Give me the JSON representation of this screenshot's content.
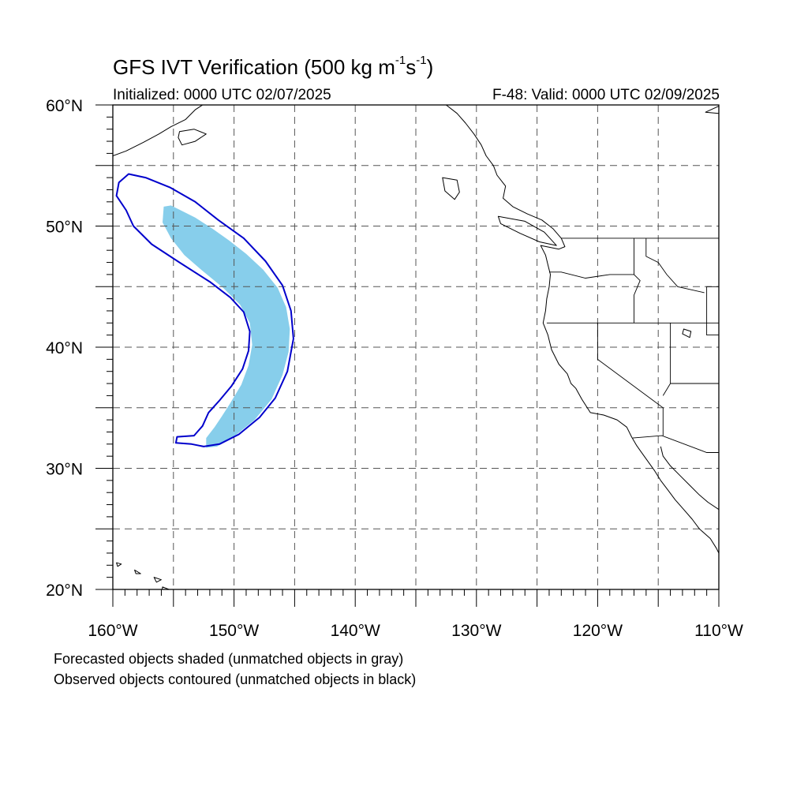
{
  "title": {
    "prefix": "GFS IVT Verification (500 kg m",
    "exp1": "-1",
    "mid": "s",
    "exp2": "-1",
    "suffix": ")"
  },
  "initialized": "Initialized: 0000 UTC 02/07/2025",
  "valid": "F-48: Valid: 0000 UTC 02/09/2025",
  "map": {
    "lon_range": [
      -160,
      -110
    ],
    "lat_range": [
      20,
      60
    ],
    "lat_labels": [
      {
        "lat": 60,
        "text": "60°N"
      },
      {
        "lat": 50,
        "text": "50°N"
      },
      {
        "lat": 40,
        "text": "40°N"
      },
      {
        "lat": 30,
        "text": "30°N"
      },
      {
        "lat": 20,
        "text": "20°N"
      }
    ],
    "lon_labels": [
      {
        "lon": -160,
        "text": "160°W"
      },
      {
        "lon": -150,
        "text": "150°W"
      },
      {
        "lon": -140,
        "text": "140°W"
      },
      {
        "lon": -130,
        "text": "130°W"
      },
      {
        "lon": -120,
        "text": "120°W"
      },
      {
        "lon": -110,
        "text": "110°W"
      }
    ],
    "gridlines": "dashed every 5°",
    "colors": {
      "forecast_fill": "#87ceeb",
      "observed_contour": "#0000cc",
      "coastline": "#000000",
      "grid": "#555555"
    },
    "forecast_object": [
      [
        -155.8,
        51.6
      ],
      [
        -155.2,
        51.7
      ],
      [
        -154.4,
        51.3
      ],
      [
        -153.2,
        50.7
      ],
      [
        -151.8,
        49.8
      ],
      [
        -150.4,
        48.8
      ],
      [
        -149.0,
        47.7
      ],
      [
        -147.6,
        46.4
      ],
      [
        -146.4,
        44.9
      ],
      [
        -145.7,
        43.3
      ],
      [
        -145.4,
        41.5
      ],
      [
        -145.5,
        39.6
      ],
      [
        -146.0,
        37.7
      ],
      [
        -146.9,
        35.7
      ],
      [
        -148.3,
        34.0
      ],
      [
        -149.9,
        32.7
      ],
      [
        -151.4,
        31.8
      ],
      [
        -152.3,
        31.7
      ],
      [
        -152.3,
        32.5
      ],
      [
        -151.6,
        33.4
      ],
      [
        -151.0,
        34.3
      ],
      [
        -150.3,
        35.4
      ],
      [
        -149.4,
        36.9
      ],
      [
        -148.8,
        38.5
      ],
      [
        -148.5,
        40.2
      ],
      [
        -148.7,
        42.0
      ],
      [
        -149.5,
        43.5
      ],
      [
        -150.9,
        44.9
      ],
      [
        -152.6,
        46.3
      ],
      [
        -154.1,
        47.6
      ],
      [
        -155.2,
        49.0
      ],
      [
        -155.9,
        50.3
      ]
    ],
    "observed_object": [
      [
        -159.5,
        53.6
      ],
      [
        -158.7,
        54.3
      ],
      [
        -157.3,
        54.0
      ],
      [
        -155.3,
        53.2
      ],
      [
        -153.2,
        52.0
      ],
      [
        -151.3,
        50.5
      ],
      [
        -149.2,
        49.0
      ],
      [
        -147.4,
        47.1
      ],
      [
        -146.0,
        45.1
      ],
      [
        -145.3,
        43.0
      ],
      [
        -145.1,
        40.7
      ],
      [
        -145.6,
        38.0
      ],
      [
        -146.6,
        35.8
      ],
      [
        -147.9,
        34.2
      ],
      [
        -149.6,
        32.8
      ],
      [
        -151.2,
        32.0
      ],
      [
        -152.5,
        31.8
      ],
      [
        -153.5,
        32.0
      ],
      [
        -154.8,
        32.1
      ],
      [
        -154.7,
        32.6
      ],
      [
        -153.3,
        32.7
      ],
      [
        -152.6,
        33.5
      ],
      [
        -152.1,
        34.6
      ],
      [
        -151.2,
        35.6
      ],
      [
        -150.2,
        36.8
      ],
      [
        -149.3,
        38.2
      ],
      [
        -148.8,
        39.7
      ],
      [
        -148.7,
        41.3
      ],
      [
        -149.2,
        42.9
      ],
      [
        -150.3,
        44.1
      ],
      [
        -152.0,
        45.4
      ],
      [
        -154.5,
        47.0
      ],
      [
        -156.8,
        48.5
      ],
      [
        -158.3,
        50.0
      ],
      [
        -158.9,
        51.3
      ],
      [
        -159.7,
        52.5
      ]
    ],
    "coastline_west": [
      [
        -132.5,
        60
      ],
      [
        -131.6,
        59.3
      ],
      [
        -130.9,
        58.5
      ],
      [
        -130.2,
        57.6
      ],
      [
        -129.6,
        56.7
      ],
      [
        -129.2,
        55.8
      ],
      [
        -128.6,
        55.0
      ],
      [
        -128.3,
        54.2
      ],
      [
        -127.6,
        53.3
      ],
      [
        -127.8,
        52.3
      ],
      [
        -127.0,
        51.6
      ],
      [
        -125.8,
        51.0
      ],
      [
        -124.6,
        50.5
      ],
      [
        -123.7,
        49.8
      ],
      [
        -123.0,
        49.0
      ],
      [
        -122.7,
        48.3
      ],
      [
        -123.2,
        48.1
      ],
      [
        -124.7,
        48.4
      ],
      [
        -124.3,
        47.6
      ],
      [
        -124.1,
        46.8
      ],
      [
        -123.9,
        46.0
      ],
      [
        -124.0,
        45.0
      ],
      [
        -124.2,
        44.0
      ],
      [
        -124.3,
        43.0
      ],
      [
        -124.5,
        42.0
      ],
      [
        -124.1,
        41.0
      ],
      [
        -123.8,
        39.8
      ],
      [
        -123.2,
        38.6
      ],
      [
        -122.5,
        37.8
      ],
      [
        -122.2,
        37.0
      ],
      [
        -121.8,
        36.6
      ],
      [
        -121.3,
        35.7
      ],
      [
        -120.6,
        34.6
      ],
      [
        -119.5,
        34.4
      ],
      [
        -118.4,
        34.0
      ],
      [
        -117.6,
        33.4
      ],
      [
        -117.2,
        32.6
      ],
      [
        -116.8,
        31.9
      ],
      [
        -116.3,
        31.2
      ],
      [
        -115.8,
        30.5
      ],
      [
        -115.3,
        29.8
      ],
      [
        -114.8,
        29.0
      ],
      [
        -114.2,
        28.2
      ],
      [
        -113.6,
        27.4
      ],
      [
        -112.9,
        26.6
      ],
      [
        -112.2,
        25.8
      ],
      [
        -111.6,
        25.0
      ],
      [
        -110.7,
        24.2
      ],
      [
        -110.2,
        23.4
      ],
      [
        -110.0,
        23.0
      ]
    ],
    "coastline_gulf": [
      [
        -114.8,
        31.8
      ],
      [
        -114.6,
        31.0
      ],
      [
        -114.0,
        30.2
      ],
      [
        -113.2,
        29.4
      ],
      [
        -112.4,
        28.6
      ],
      [
        -111.6,
        27.8
      ],
      [
        -110.9,
        27.2
      ],
      [
        -110.0,
        26.6
      ]
    ],
    "coastline_alaska": [
      [
        -160.0,
        55.8
      ],
      [
        -158.9,
        56.2
      ],
      [
        -157.5,
        56.9
      ],
      [
        -156.2,
        57.6
      ],
      [
        -155.2,
        58.2
      ],
      [
        -154.0,
        58.8
      ],
      [
        -153.2,
        59.6
      ],
      [
        -152.6,
        60.0
      ]
    ],
    "coastline_ne": [
      [
        -110.0,
        59.9
      ],
      [
        -111.1,
        59.4
      ],
      [
        -110.0,
        59.3
      ]
    ],
    "islands": [
      [
        [
          -154.5,
          57.8
        ],
        [
          -153.3,
          58.0
        ],
        [
          -152.3,
          57.6
        ],
        [
          -153.2,
          57.0
        ],
        [
          -154.3,
          56.7
        ],
        [
          -154.6,
          57.3
        ]
      ],
      [
        [
          -132.8,
          54.0
        ],
        [
          -131.6,
          53.8
        ],
        [
          -131.4,
          52.8
        ],
        [
          -131.8,
          52.2
        ],
        [
          -132.6,
          52.9
        ]
      ],
      [
        [
          -128.2,
          50.8
        ],
        [
          -126.0,
          50.4
        ],
        [
          -124.4,
          49.5
        ],
        [
          -123.4,
          48.4
        ],
        [
          -124.8,
          48.7
        ],
        [
          -126.4,
          49.4
        ],
        [
          -128.0,
          50.2
        ]
      ],
      [
        [
          -155.9,
          20.2
        ],
        [
          -155.1,
          19.9
        ],
        [
          -154.8,
          19.5
        ],
        [
          -155.6,
          19.0
        ],
        [
          -156.0,
          19.6
        ]
      ],
      [
        [
          -156.6,
          21.0
        ],
        [
          -156.0,
          20.8
        ],
        [
          -156.4,
          20.6
        ]
      ],
      [
        [
          -158.2,
          21.6
        ],
        [
          -157.7,
          21.3
        ],
        [
          -158.1,
          21.3
        ]
      ],
      [
        [
          -159.7,
          22.2
        ],
        [
          -159.3,
          22.1
        ],
        [
          -159.6,
          21.9
        ]
      ]
    ],
    "borders": [
      [
        [
          -123.0,
          49.0
        ],
        [
          -110.0,
          49.0
        ]
      ],
      [
        [
          -124.0,
          46.2
        ],
        [
          -123.0,
          46.2
        ],
        [
          -121.0,
          45.7
        ],
        [
          -119.0,
          46.0
        ],
        [
          -117.0,
          46.0
        ],
        [
          -117.0,
          49.0
        ]
      ],
      [
        [
          -124.2,
          42.0
        ],
        [
          -110.0,
          42.0
        ]
      ],
      [
        [
          -120.0,
          42.0
        ],
        [
          -120.0,
          39.0
        ],
        [
          -114.6,
          35.0
        ],
        [
          -114.6,
          32.7
        ]
      ],
      [
        [
          -117.0,
          46.0
        ],
        [
          -116.5,
          45.5
        ],
        [
          -117.0,
          44.3
        ],
        [
          -117.0,
          42.0
        ]
      ],
      [
        [
          -116.0,
          49.0
        ],
        [
          -116.0,
          47.5
        ],
        [
          -115.0,
          47.0
        ],
        [
          -114.3,
          46.0
        ],
        [
          -113.4,
          45.0
        ],
        [
          -111.2,
          44.5
        ]
      ],
      [
        [
          -114.0,
          42.0
        ],
        [
          -114.0,
          37.0
        ],
        [
          -114.6,
          36.0
        ]
      ],
      [
        [
          -114.0,
          37.0
        ],
        [
          -110.0,
          37.0
        ]
      ],
      [
        [
          -110.0,
          45.0
        ],
        [
          -111.0,
          45.0
        ],
        [
          -111.0,
          41.0
        ],
        [
          -110.0,
          41.0
        ]
      ],
      [
        [
          -117.1,
          32.5
        ],
        [
          -114.7,
          32.7
        ],
        [
          -111.0,
          31.3
        ],
        [
          -110.0,
          31.3
        ]
      ]
    ],
    "lakes": [
      [
        [
          -112.9,
          41.5
        ],
        [
          -112.3,
          41.3
        ],
        [
          -112.4,
          40.8
        ],
        [
          -113.0,
          41.1
        ]
      ]
    ]
  },
  "caption": {
    "line1": "Forecasted objects shaded (unmatched objects in gray)",
    "line2": "Observed objects contoured (unmatched objects in black)"
  }
}
